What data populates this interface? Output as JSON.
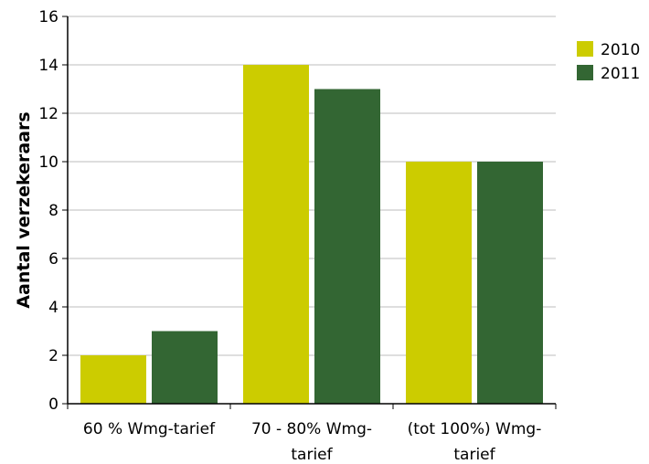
{
  "chart_data": {
    "type": "bar",
    "categories": [
      [
        "60 % Wmg-tarief"
      ],
      [
        "70 - 80% Wmg-",
        "tarief"
      ],
      [
        "(tot 100%) Wmg-",
        "tarief"
      ]
    ],
    "series": [
      {
        "name": "2010",
        "values": [
          2,
          14,
          10
        ],
        "color": "#cccc00"
      },
      {
        "name": "2011",
        "values": [
          3,
          13,
          10
        ],
        "color": "#336633"
      }
    ],
    "title": "",
    "xlabel": "",
    "ylabel": "Aantal verzekeraars",
    "ylim": [
      0,
      16
    ],
    "yticks": [
      0,
      2,
      4,
      6,
      8,
      10,
      12,
      14,
      16
    ],
    "grid": true,
    "legend": "top-right"
  }
}
